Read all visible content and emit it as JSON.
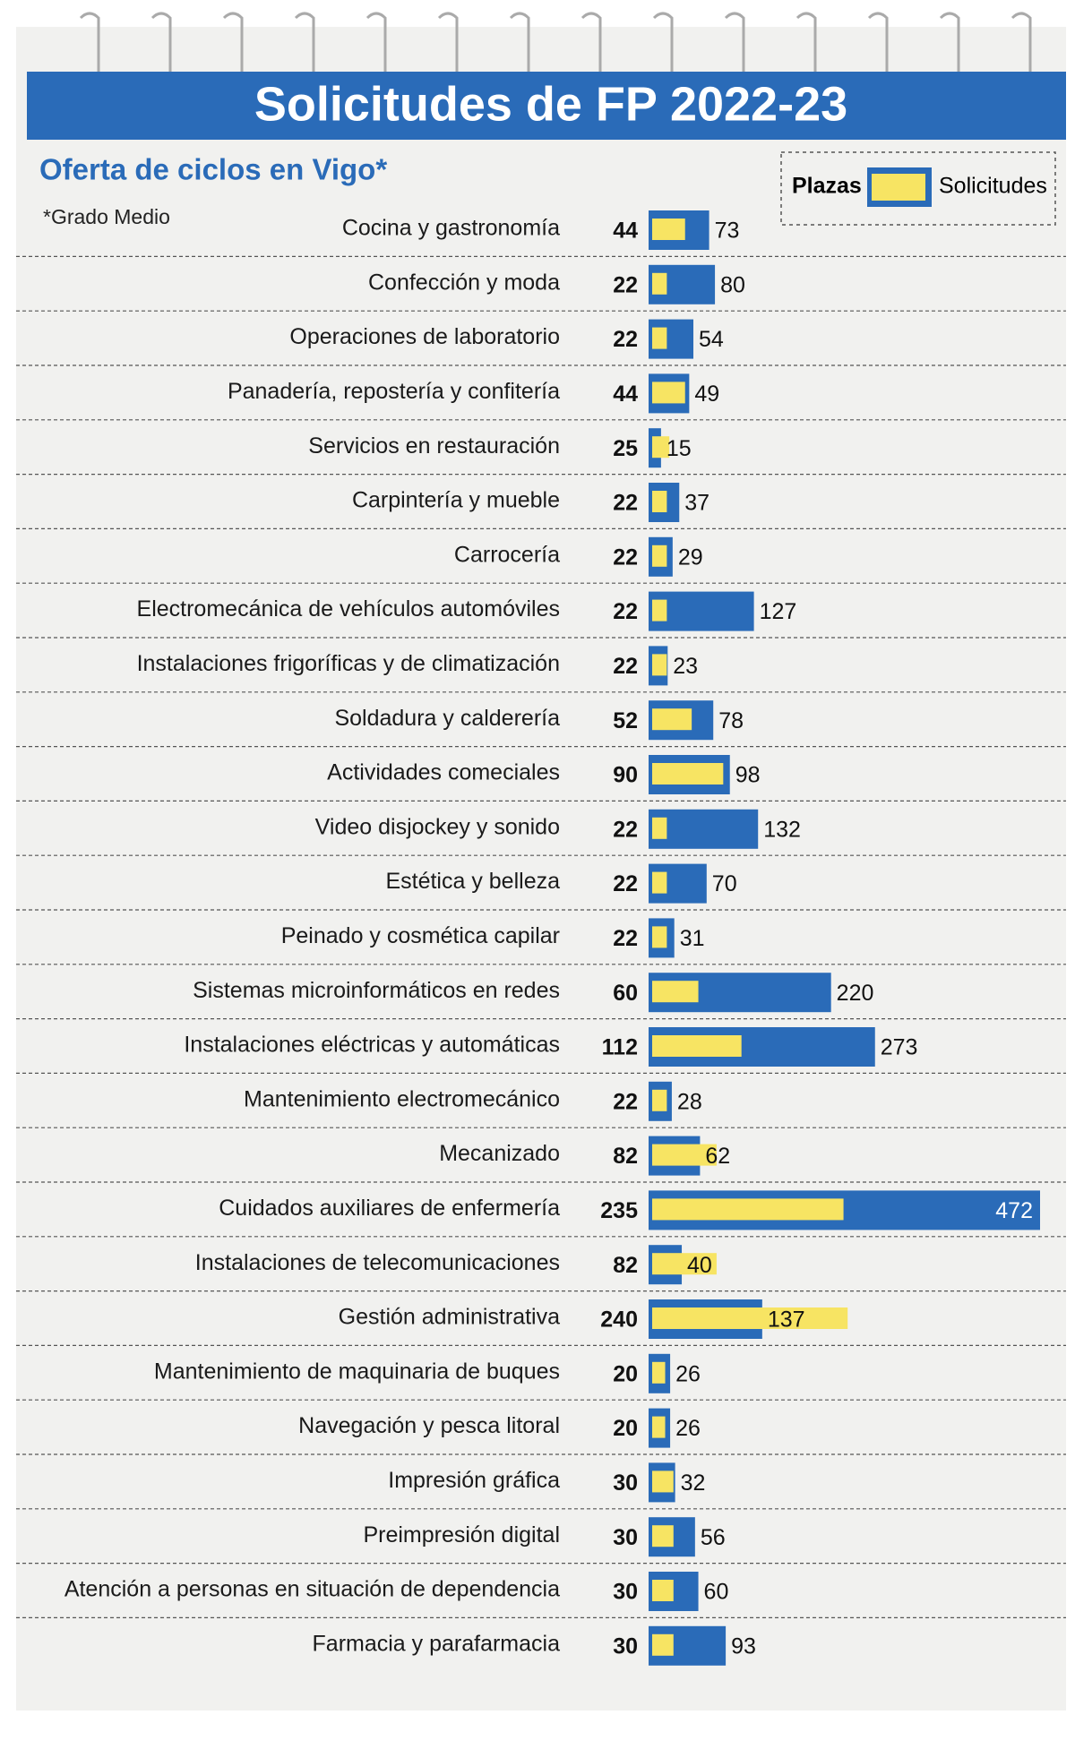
{
  "chart_data": {
    "type": "bar",
    "title": "Solicitudes de FP 2022-23",
    "subtitle": "Oferta de ciclos en Vigo*",
    "note": "*Grado Medio",
    "categories": [
      "Cocina y gastronomía",
      "Confección y moda",
      "Operaciones de laboratorio",
      "Panadería, repostería y confitería",
      "Servicios en restauración",
      "Carpintería y mueble",
      "Carrocería",
      "Electromecánica de vehículos automóviles",
      "Instalaciones frigoríficas y de climatización",
      "Soldadura y calderería",
      "Actividades comeciales",
      "Video disjockey y sonido",
      "Estética y belleza",
      "Peinado y cosmética capilar",
      "Sistemas microinformáticos en redes",
      "Instalaciones eléctricas y automáticas",
      "Mantenimiento electromecánico",
      "Mecanizado",
      "Cuidados auxiliares de enfermería",
      "Instalaciones de telecomunicaciones",
      "Gestión administrativa",
      "Mantenimiento de maquinaria de buques",
      "Navegación y pesca litoral",
      "Impresión gráfica",
      "Preimpresión digital",
      "Atención a personas en situación de dependencia",
      "Farmacia y parafarmacia"
    ],
    "series": [
      {
        "name": "Plazas",
        "color": "#f7e463",
        "values": [
          44,
          22,
          22,
          44,
          25,
          22,
          22,
          22,
          22,
          52,
          90,
          22,
          22,
          22,
          60,
          112,
          22,
          82,
          235,
          82,
          240,
          20,
          20,
          30,
          30,
          30,
          30
        ]
      },
      {
        "name": "Solicitudes",
        "color": "#2a6bb8",
        "values": [
          73,
          80,
          54,
          49,
          15,
          37,
          29,
          127,
          23,
          78,
          98,
          132,
          70,
          31,
          220,
          273,
          28,
          62,
          472,
          40,
          137,
          26,
          26,
          32,
          56,
          60,
          93
        ]
      }
    ]
  }
}
